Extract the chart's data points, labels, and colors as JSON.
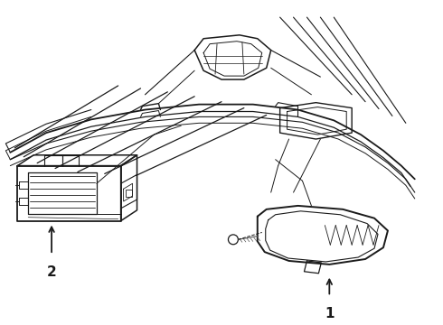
{
  "background_color": "#ffffff",
  "line_color": "#1a1a1a",
  "line_width": 1.0,
  "fig_width": 4.9,
  "fig_height": 3.6,
  "dpi": 100,
  "label_1": "1",
  "label_2": "2",
  "label_fontsize": 11,
  "label_fontweight": "bold"
}
